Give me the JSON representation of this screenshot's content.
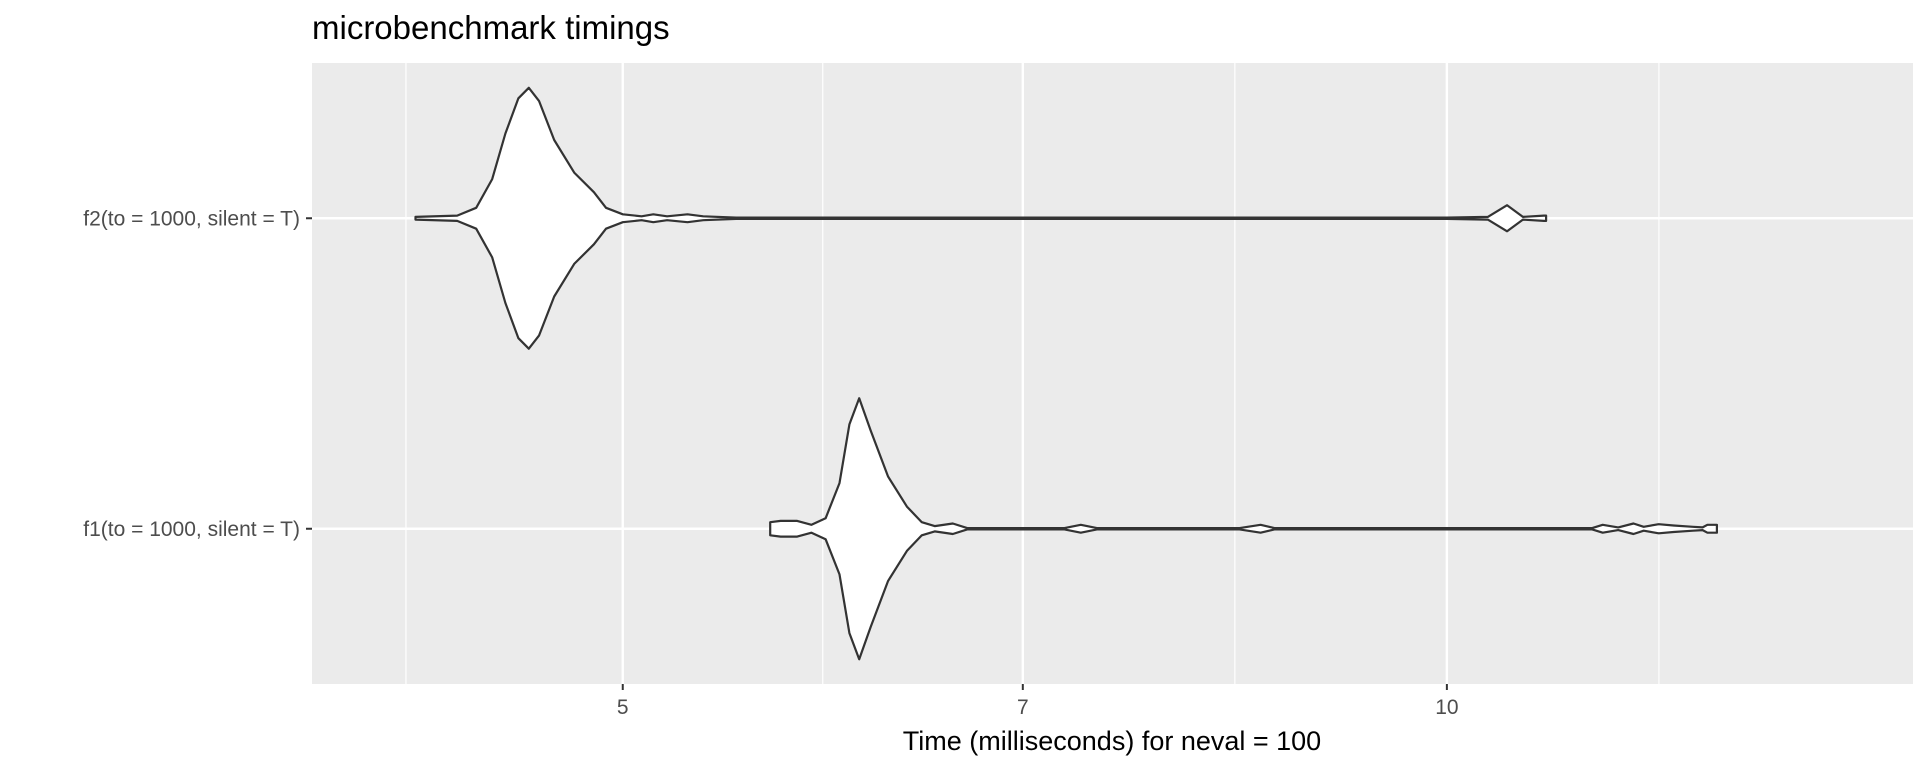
{
  "chart_data": {
    "type": "violin",
    "title": "microbenchmark timings",
    "xlabel": "Time (milliseconds) for neval = 100",
    "ylabel": "",
    "x_scale": "log",
    "xlim": [
      3.85,
      14.8
    ],
    "x_ticks": [
      5,
      7,
      10
    ],
    "grid": true,
    "legend": "none",
    "series": [
      {
        "name": "f2(to = 1000, silent = T)",
        "density": [
          [
            4.2,
            0.01
          ],
          [
            4.35,
            0.02
          ],
          [
            4.42,
            0.08
          ],
          [
            4.48,
            0.3
          ],
          [
            4.53,
            0.65
          ],
          [
            4.58,
            0.92
          ],
          [
            4.62,
            1.0
          ],
          [
            4.66,
            0.9
          ],
          [
            4.72,
            0.6
          ],
          [
            4.8,
            0.35
          ],
          [
            4.88,
            0.2
          ],
          [
            4.93,
            0.08
          ],
          [
            5.0,
            0.03
          ],
          [
            5.08,
            0.015
          ],
          [
            5.13,
            0.03
          ],
          [
            5.19,
            0.015
          ],
          [
            5.28,
            0.03
          ],
          [
            5.35,
            0.015
          ],
          [
            5.5,
            0.005
          ],
          [
            10.0,
            0.005
          ],
          [
            10.35,
            0.01
          ],
          [
            10.52,
            0.1
          ],
          [
            10.66,
            0.01
          ],
          [
            10.85,
            0.02
          ],
          [
            10.87,
            0.02
          ]
        ]
      },
      {
        "name": "f1(to = 1000, silent = T)",
        "density": [
          [
            5.66,
            0.05
          ],
          [
            5.71,
            0.06
          ],
          [
            5.79,
            0.06
          ],
          [
            5.86,
            0.03
          ],
          [
            5.93,
            0.08
          ],
          [
            6.0,
            0.35
          ],
          [
            6.05,
            0.8
          ],
          [
            6.1,
            1.0
          ],
          [
            6.16,
            0.75
          ],
          [
            6.25,
            0.4
          ],
          [
            6.35,
            0.17
          ],
          [
            6.43,
            0.05
          ],
          [
            6.5,
            0.02
          ],
          [
            6.6,
            0.04
          ],
          [
            6.68,
            0.005
          ],
          [
            7.25,
            0.005
          ],
          [
            7.35,
            0.03
          ],
          [
            7.45,
            0.005
          ],
          [
            8.4,
            0.005
          ],
          [
            8.55,
            0.03
          ],
          [
            8.65,
            0.005
          ],
          [
            11.3,
            0.005
          ],
          [
            11.4,
            0.03
          ],
          [
            11.55,
            0.01
          ],
          [
            11.7,
            0.04
          ],
          [
            11.8,
            0.015
          ],
          [
            11.95,
            0.035
          ],
          [
            12.1,
            0.025
          ],
          [
            12.3,
            0.015
          ],
          [
            12.4,
            0.01
          ],
          [
            12.45,
            0.03
          ],
          [
            12.55,
            0.03
          ]
        ]
      }
    ]
  }
}
